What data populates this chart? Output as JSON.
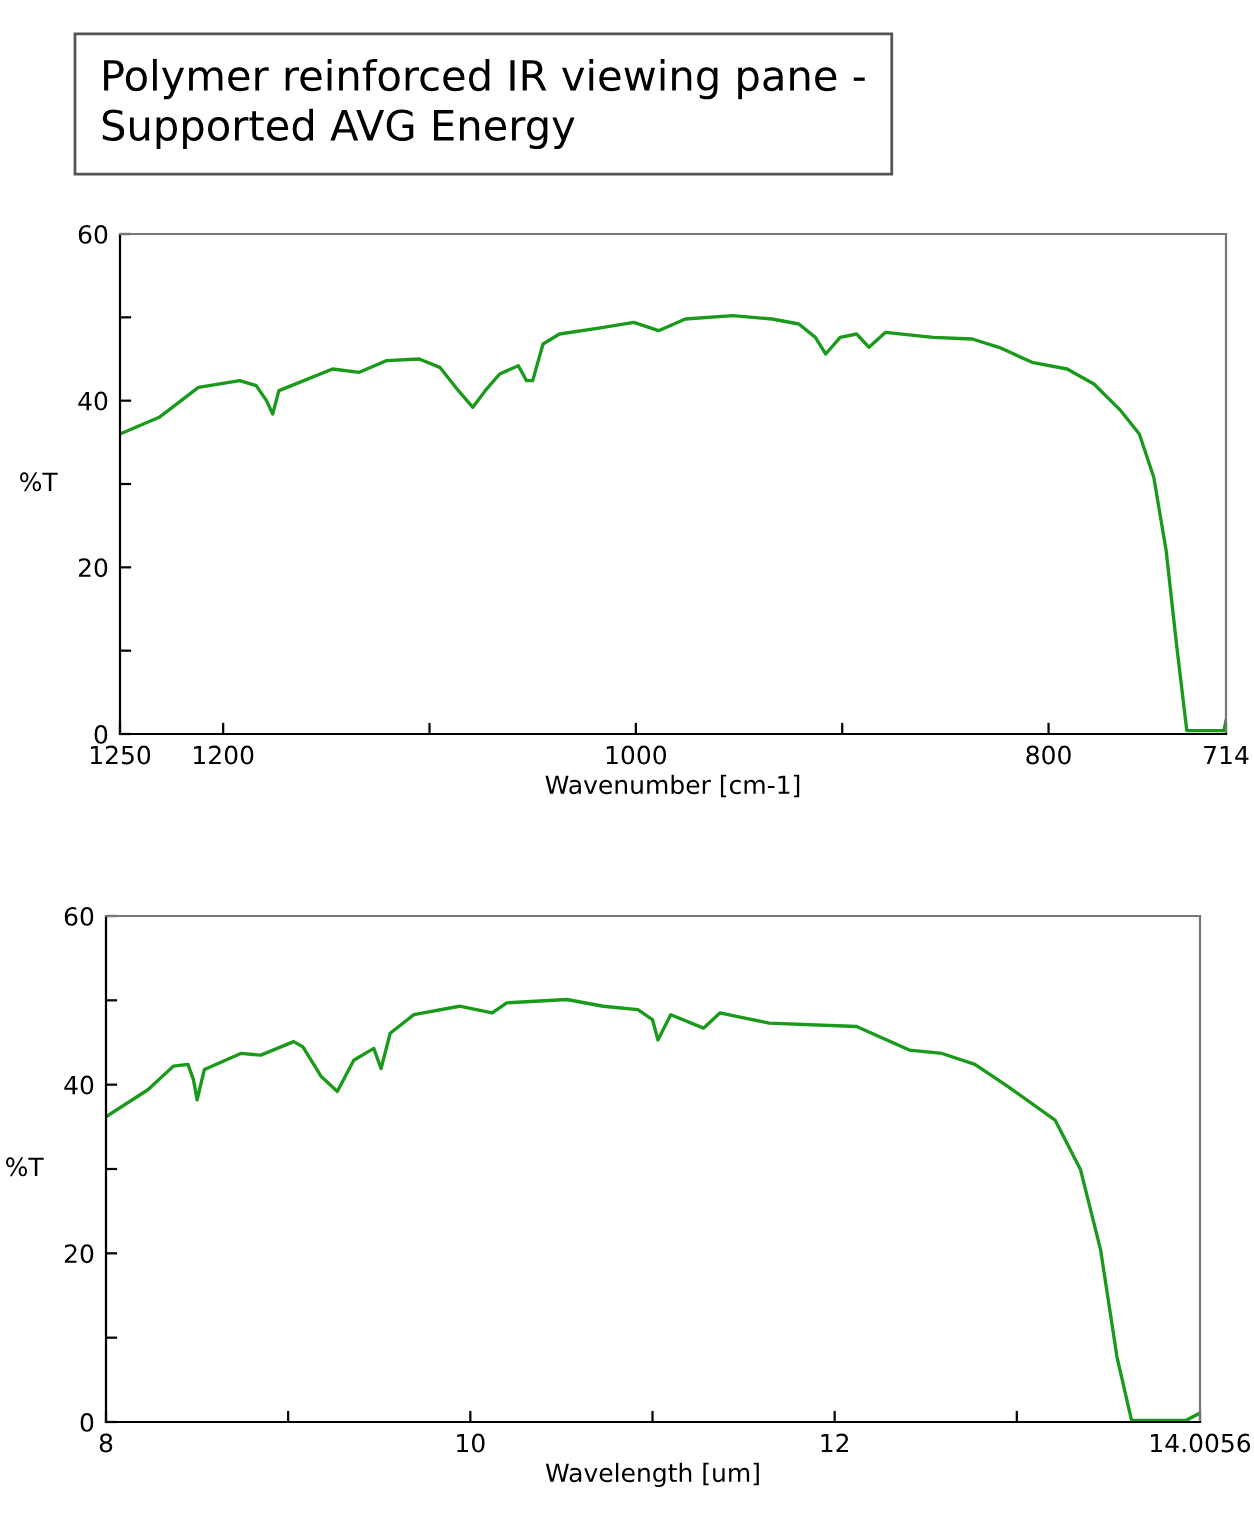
{
  "chart_data": [
    {
      "type": "line",
      "title": "Polymer reinforced IR viewing pane -\nSupported AVG Energy",
      "xlabel": "Wavenumber [cm-1]",
      "ylabel": "%T",
      "xlim": [
        1250,
        714
      ],
      "ylim": [
        0,
        60
      ],
      "xticks": [
        1250,
        1200,
        {
          "value": 1100,
          "label": null
        },
        1000,
        {
          "value": 900,
          "label": null
        },
        800,
        714
      ],
      "yticks": [
        0,
        {
          "value": 10,
          "label": null
        },
        20,
        {
          "value": 30,
          "label": null
        },
        40,
        {
          "value": 50,
          "label": null
        },
        60
      ],
      "grid": false,
      "legend": false,
      "series": [
        {
          "color": "#1a9a1a",
          "x": [
            1250,
            1231,
            1212,
            1192,
            1184,
            1179,
            1176,
            1173,
            1163,
            1147,
            1134,
            1121,
            1105,
            1095,
            1086,
            1079,
            1073,
            1066,
            1057,
            1053,
            1050,
            1045,
            1037,
            1018,
            1001,
            989,
            976,
            953,
            934,
            921,
            913,
            908,
            901,
            893,
            887,
            879,
            856,
            837,
            824,
            808,
            791,
            778,
            765,
            756,
            749,
            743,
            738,
            733,
            715,
            714
          ],
          "values": [
            36.0,
            38.0,
            41.6,
            42.4,
            41.8,
            40.0,
            38.4,
            41.2,
            42.2,
            43.8,
            43.4,
            44.8,
            45.0,
            44.0,
            41.2,
            39.2,
            41.2,
            43.2,
            44.2,
            42.4,
            42.4,
            46.8,
            48.0,
            48.7,
            49.4,
            48.4,
            49.8,
            50.2,
            49.8,
            49.2,
            47.6,
            45.6,
            47.6,
            48.0,
            46.4,
            48.2,
            47.6,
            47.4,
            46.4,
            44.6,
            43.8,
            42.0,
            38.8,
            36.0,
            30.8,
            22.0,
            10.8,
            0.4,
            0.4,
            1.6
          ]
        }
      ]
    },
    {
      "type": "line",
      "xlabel": "Wavelength [um]",
      "ylabel": "%T",
      "xlim": [
        8,
        14.0056
      ],
      "ylim": [
        0,
        60
      ],
      "xticks": [
        8,
        {
          "value": 9,
          "label": null
        },
        10,
        {
          "value": 11,
          "label": null
        },
        12,
        {
          "value": 13,
          "label": null
        },
        14.0056
      ],
      "yticks": [
        0,
        {
          "value": 10,
          "label": null
        },
        20,
        {
          "value": 30,
          "label": null
        },
        40,
        {
          "value": 50,
          "label": null
        },
        60
      ],
      "grid": false,
      "legend": false,
      "series": [
        {
          "color": "#1a9a1a",
          "x": [
            8.0,
            8.23,
            8.37,
            8.45,
            8.48,
            8.5,
            8.54,
            8.74,
            8.85,
            9.03,
            9.08,
            9.18,
            9.27,
            9.36,
            9.47,
            9.51,
            9.56,
            9.69,
            9.94,
            10.12,
            10.2,
            10.53,
            10.73,
            10.92,
            11.0,
            11.03,
            11.1,
            11.28,
            11.37,
            11.64,
            12.12,
            12.41,
            12.59,
            12.77,
            12.95,
            13.21,
            13.35,
            13.46,
            13.55,
            13.63,
            13.93,
            14.0
          ],
          "values": [
            36.2,
            39.4,
            42.2,
            42.4,
            40.6,
            38.2,
            41.8,
            43.7,
            43.5,
            45.1,
            44.5,
            41.0,
            39.2,
            42.9,
            44.3,
            41.9,
            46.1,
            48.3,
            49.3,
            48.5,
            49.7,
            50.1,
            49.3,
            48.9,
            47.7,
            45.3,
            48.3,
            46.7,
            48.5,
            47.3,
            46.9,
            44.1,
            43.7,
            42.4,
            39.8,
            35.8,
            29.9,
            20.4,
            7.7,
            0.2,
            0.2,
            1.0
          ]
        }
      ]
    }
  ]
}
